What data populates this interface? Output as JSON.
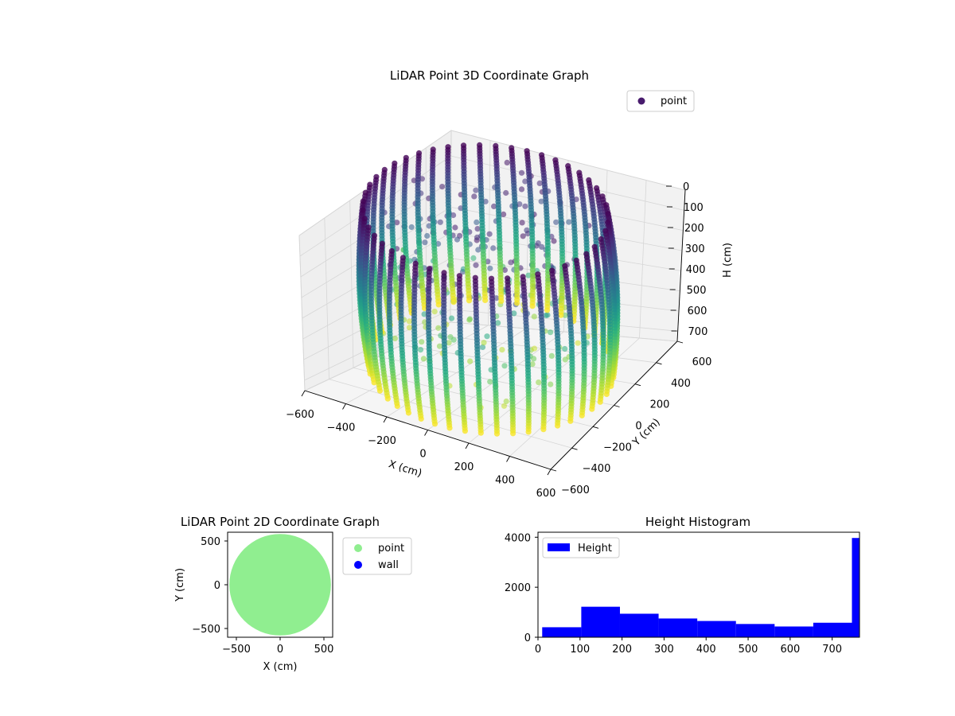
{
  "colors": {
    "point_2d": "#90ee90",
    "wall": "#0000ff",
    "hist": "#0000ff",
    "legend_3d_marker": "#481b6d",
    "viridis": [
      "#440154",
      "#472c7a",
      "#3b518b",
      "#2c718e",
      "#21908d",
      "#27ad81",
      "#5cc863",
      "#aadc32",
      "#fde725"
    ]
  },
  "chart_data": [
    {
      "type": "scatter",
      "projection": "3d",
      "title": "LiDAR Point 3D Coordinate Graph",
      "xlabel": "X (cm)",
      "ylabel": "Y (cm)",
      "zlabel": "H (cm)",
      "xlim": [
        -600,
        600
      ],
      "ylim": [
        -600,
        600
      ],
      "zlim": [
        750,
        0
      ],
      "xticks": [
        "−600",
        "−400",
        "−200",
        "0",
        "200",
        "400",
        "600"
      ],
      "yticks": [
        "−600",
        "−400",
        "−200",
        "0",
        "200",
        "400",
        "600"
      ],
      "zticks": [
        "0",
        "100",
        "200",
        "300",
        "400",
        "500",
        "600",
        "700"
      ],
      "legend": [
        {
          "label": "point",
          "marker": "circle"
        }
      ],
      "legend_position": "upper-right",
      "grid": true,
      "colormap": "viridis",
      "series": [
        {
          "name": "point",
          "shape": "vertical wall scans forming a cylinder",
          "wall_radius": 560,
          "height_range": [
            0,
            760
          ],
          "scan_columns": 48,
          "stray_points": [
            {
              "x": -600,
              "y": 350,
              "h": 560
            }
          ]
        }
      ]
    },
    {
      "type": "scatter",
      "title": "LiDAR Point 2D Coordinate Graph",
      "xlabel": "X (cm)",
      "ylabel": "Y (cm)",
      "xlim": [
        -600,
        600
      ],
      "ylim": [
        -600,
        600
      ],
      "xticks": [
        "−500",
        "0",
        "500"
      ],
      "yticks": [
        "500",
        "0",
        "−500"
      ],
      "legend": [
        {
          "label": "point",
          "color": "#90ee90"
        },
        {
          "label": "wall",
          "color": "#0000ff"
        }
      ],
      "legend_position": "outside-right",
      "series": [
        {
          "name": "point",
          "shape": "filled disk",
          "radius": 580
        },
        {
          "name": "wall",
          "values": []
        }
      ]
    },
    {
      "type": "bar",
      "title": "Height Histogram",
      "xticks": [
        "0",
        "100",
        "200",
        "300",
        "400",
        "500",
        "600",
        "700"
      ],
      "yticks": [
        "0",
        "2000",
        "4000"
      ],
      "xlim": [
        0,
        765
      ],
      "ylim": [
        0,
        4200
      ],
      "legend": [
        {
          "label": "Height",
          "color": "#0000ff"
        }
      ],
      "legend_position": "upper-left",
      "bins": [
        {
          "x0": 10,
          "x1": 103,
          "value": 400
        },
        {
          "x0": 103,
          "x1": 195,
          "value": 1220
        },
        {
          "x0": 195,
          "x1": 287,
          "value": 940
        },
        {
          "x0": 287,
          "x1": 379,
          "value": 750
        },
        {
          "x0": 379,
          "x1": 471,
          "value": 650
        },
        {
          "x0": 471,
          "x1": 563,
          "value": 530
        },
        {
          "x0": 563,
          "x1": 655,
          "value": 430
        },
        {
          "x0": 655,
          "x1": 747,
          "value": 580
        },
        {
          "x0": 747,
          "x1": 765,
          "value": 3970
        }
      ]
    }
  ]
}
